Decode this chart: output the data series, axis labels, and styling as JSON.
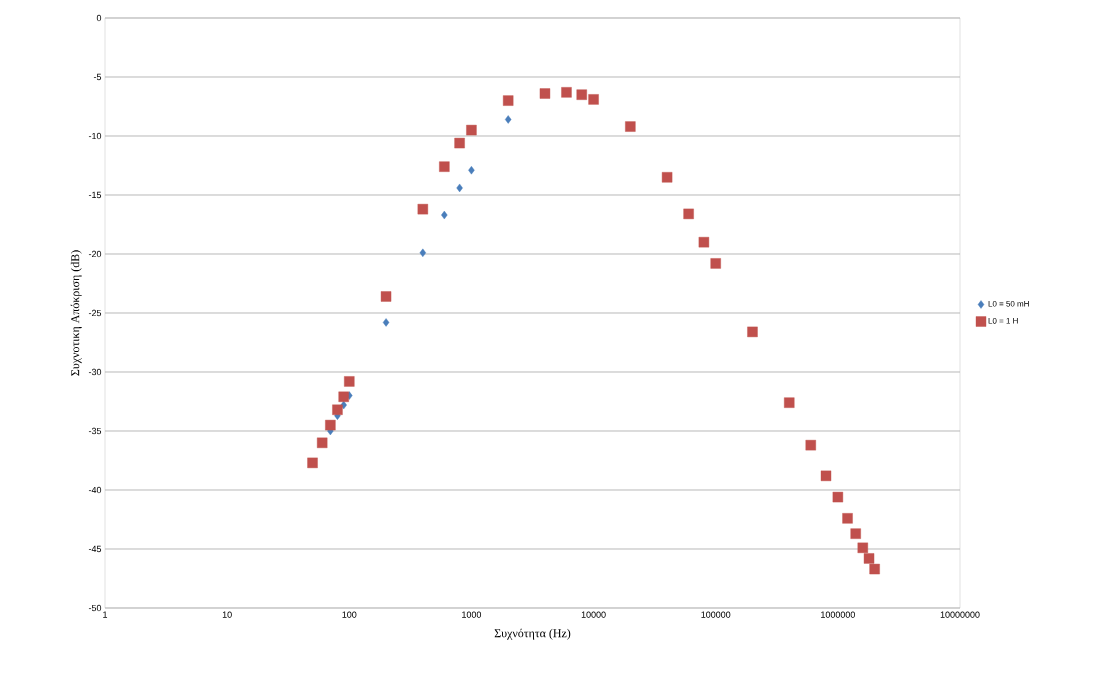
{
  "chart_data": {
    "type": "scatter",
    "xlabel": "Συχνότητα (Hz)",
    "ylabel": "Συχνοτικη Απόκριση (dB)",
    "log": "x",
    "grid": "y",
    "legend": "right",
    "xlim": [
      1,
      10000000
    ],
    "ylim": [
      -50,
      0
    ],
    "xticks": [
      1,
      10,
      100,
      1000,
      10000,
      100000,
      1000000,
      10000000
    ],
    "yticks": [
      0,
      -5,
      -10,
      -15,
      -20,
      -25,
      -30,
      -35,
      -40,
      -45,
      -50
    ],
    "series": [
      {
        "name": "L0 = 50 mH",
        "color": "#4a7ebb",
        "marker": "diamond",
        "x": [
          70,
          80,
          90,
          100,
          200,
          400,
          600,
          800,
          1000,
          2000
        ],
        "values": [
          -35.0,
          -33.7,
          -32.8,
          -32.0,
          -25.8,
          -19.9,
          -16.7,
          -14.4,
          -12.9,
          -8.6
        ]
      },
      {
        "name": "L0 = 1 H",
        "color": "#c0504d",
        "marker": "square",
        "x": [
          50,
          60,
          70,
          80,
          90,
          100,
          200,
          400,
          600,
          800,
          1000,
          2000,
          4000,
          6000,
          8000,
          10000,
          20000,
          40000,
          60000,
          80000,
          100000,
          200000,
          400000,
          600000,
          800000,
          1000000,
          1200000,
          1400000,
          1600000,
          1800000,
          2000000
        ],
        "values": [
          -37.7,
          -36.0,
          -34.5,
          -33.2,
          -32.1,
          -30.8,
          -23.6,
          -16.2,
          -12.6,
          -10.6,
          -9.5,
          -7.0,
          -6.4,
          -6.3,
          -6.5,
          -6.9,
          -9.2,
          -13.5,
          -16.6,
          -19.0,
          -20.8,
          -26.6,
          -32.6,
          -36.2,
          -38.8,
          -40.6,
          -42.4,
          -43.7,
          -44.9,
          -45.8,
          -46.7
        ]
      }
    ]
  }
}
